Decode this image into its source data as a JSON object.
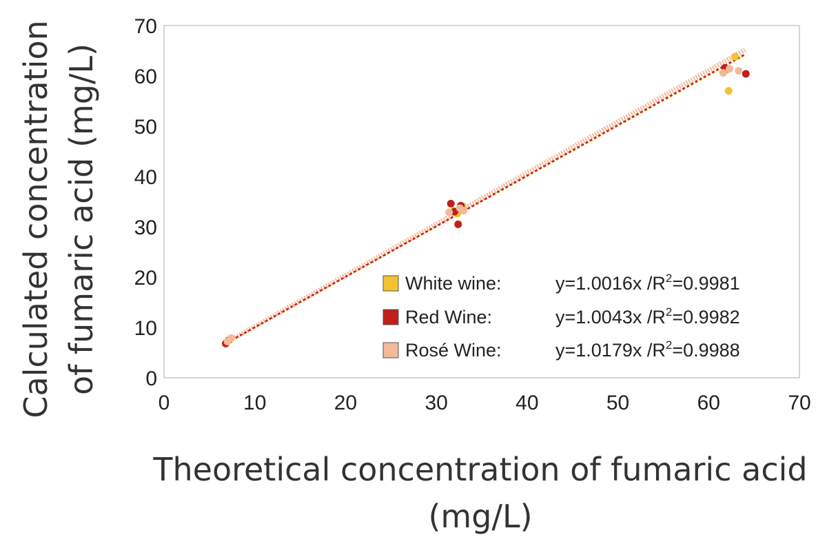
{
  "chart_data": {
    "type": "scatter",
    "xlabel_lines": [
      "Theoretical concentration of fumaric acid",
      "(mg/L)"
    ],
    "ylabel_lines": [
      "Calculated concentration",
      "of fumaric acid (mg/L)"
    ],
    "xlim": [
      0,
      70
    ],
    "ylim": [
      0,
      70
    ],
    "x_ticks": [
      "0",
      "10",
      "20",
      "30",
      "40",
      "50",
      "60",
      "70"
    ],
    "y_ticks": [
      "0",
      "10",
      "20",
      "30",
      "40",
      "50",
      "60",
      "70"
    ],
    "grid": false,
    "legend_position": "bottom-right",
    "series": [
      {
        "name": "White wine:",
        "equation": "y=1.0016x /R",
        "r2": "=0.9981",
        "slope": 1.0016,
        "color": "#f2c230",
        "points": [
          [
            6.9,
            7.0
          ],
          [
            7.3,
            7.7
          ],
          [
            31.9,
            33.2
          ],
          [
            32.3,
            32.6
          ],
          [
            32.9,
            34.1
          ],
          [
            62.2,
            57.0
          ],
          [
            62.9,
            63.8
          ],
          [
            61.9,
            61.1
          ]
        ]
      },
      {
        "name": "Red Wine:",
        "equation": "y=1.0043x /R",
        "r2": "=0.9982",
        "slope": 1.0043,
        "color": "#c0201a",
        "points": [
          [
            6.8,
            6.8
          ],
          [
            7.1,
            7.4
          ],
          [
            31.6,
            34.6
          ],
          [
            32.0,
            33.0
          ],
          [
            32.4,
            30.5
          ],
          [
            32.7,
            34.2
          ],
          [
            61.8,
            61.6
          ],
          [
            64.1,
            60.4
          ]
        ]
      },
      {
        "name": "Rosé Wine:",
        "equation": "y=1.0179x /R",
        "r2": "=0.9988",
        "slope": 1.0179,
        "color": "#f4b89a",
        "points": [
          [
            7.0,
            7.2
          ],
          [
            7.4,
            7.9
          ],
          [
            31.4,
            32.9
          ],
          [
            32.6,
            33.7
          ],
          [
            33.0,
            33.2
          ],
          [
            61.6,
            60.6
          ],
          [
            62.3,
            61.4
          ],
          [
            63.3,
            61.0
          ]
        ]
      }
    ]
  }
}
